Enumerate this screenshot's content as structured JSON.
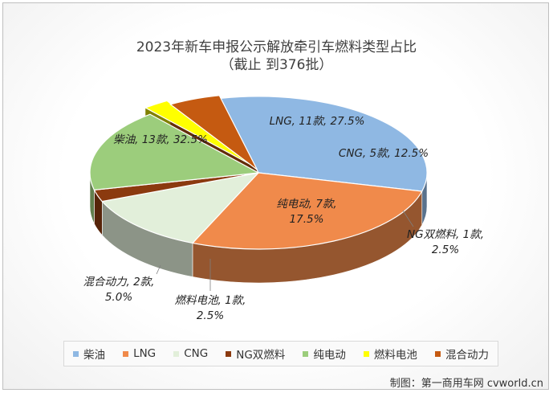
{
  "chart_data": {
    "type": "pie",
    "title": "2023年新车申报公示解放牵引车燃料类型占比",
    "subtitle": "（截止 到376批）",
    "slices": [
      {
        "name": "柴油",
        "label": "柴油, 13款, 32.5%",
        "count": 13,
        "percent": 32.5,
        "color": "#8fb8e3"
      },
      {
        "name": "LNG",
        "label": "LNG, 11款, 27.5%",
        "count": 11,
        "percent": 27.5,
        "color": "#f08a4b"
      },
      {
        "name": "CNG",
        "label": "CNG, 5款, 12.5%",
        "count": 5,
        "percent": 12.5,
        "color": "#e2efda"
      },
      {
        "name": "NG双燃料",
        "label": "NG双燃料, 1款, 2.5%",
        "count": 1,
        "percent": 2.5,
        "color": "#8b3a0f"
      },
      {
        "name": "纯电动",
        "label": "纯电动, 7款, 17.5%",
        "count": 7,
        "percent": 17.5,
        "color": "#9ccd7c"
      },
      {
        "name": "燃料电池",
        "label": "燃料电池, 1款, 2.5%",
        "count": 1,
        "percent": 2.5,
        "color": "#ffff00"
      },
      {
        "name": "混合动力",
        "label": "混合动力, 2款, 5.0%",
        "count": 2,
        "percent": 5.0,
        "color": "#c55a11"
      }
    ],
    "legend_position": "bottom"
  },
  "credit": "制图：第一商用车网 cvworld.cn"
}
